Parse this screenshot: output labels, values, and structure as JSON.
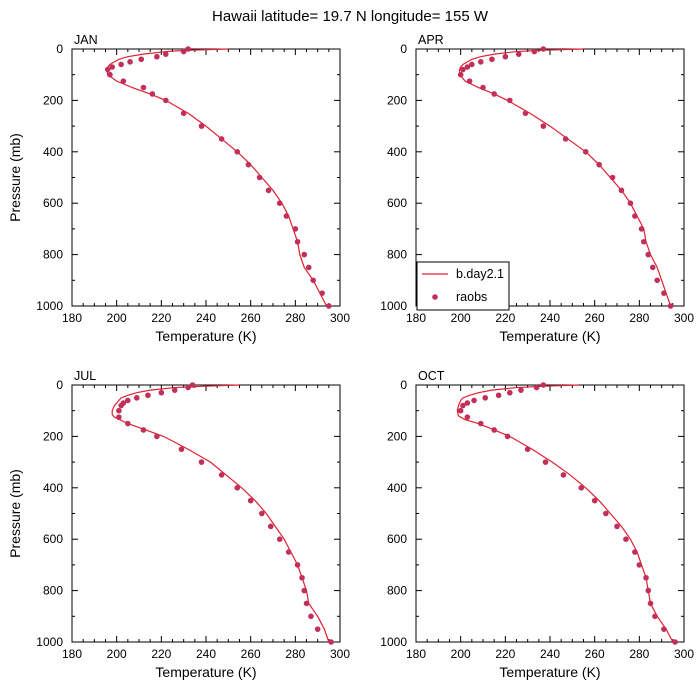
{
  "suptitle": "Hawaii  latitude= 19.7 N longitude= 155 W",
  "colors": {
    "model": "#e0202f",
    "obs": "#c0305a"
  },
  "legend": {
    "model_label": "b.day2.1",
    "obs_label": "raobs",
    "placement": "in APR panel, lower-left"
  },
  "chart_data": [
    {
      "type": "line",
      "label": "JAN",
      "xlabel": "Temperature (K)",
      "ylabel": "Pressure (mb)",
      "xlim": [
        180,
        300
      ],
      "ylim": [
        1000,
        0
      ],
      "xticks": [
        180,
        200,
        220,
        240,
        260,
        280,
        300
      ],
      "yticks": [
        0,
        200,
        400,
        600,
        800,
        1000
      ],
      "series": [
        {
          "name": "b.day2.1",
          "kind": "line",
          "points": [
            [
              250,
              0
            ],
            [
              232,
              5
            ],
            [
              222,
              10
            ],
            [
              212,
              20
            ],
            [
              205,
              30
            ],
            [
              201,
              40
            ],
            [
              199,
              50
            ],
            [
              197,
              60
            ],
            [
              196,
              70
            ],
            [
              195.5,
              80
            ],
            [
              196,
              100
            ],
            [
              200,
              125
            ],
            [
              207,
              150
            ],
            [
              215,
              175
            ],
            [
              222,
              200
            ],
            [
              232,
              250
            ],
            [
              240,
              300
            ],
            [
              247,
              350
            ],
            [
              254,
              400
            ],
            [
              260,
              450
            ],
            [
              265,
              500
            ],
            [
              270,
              550
            ],
            [
              274,
              600
            ],
            [
              277,
              650
            ],
            [
              279,
              700
            ],
            [
              281,
              750
            ],
            [
              282,
              800
            ],
            [
              284,
              850
            ],
            [
              288,
              900
            ],
            [
              291,
              950
            ],
            [
              294,
              1000
            ]
          ]
        },
        {
          "name": "raobs",
          "kind": "scatter",
          "points": [
            [
              232,
              0
            ],
            [
              230,
              10
            ],
            [
              222,
              20
            ],
            [
              218,
              30
            ],
            [
              211,
              40
            ],
            [
              206,
              50
            ],
            [
              202,
              60
            ],
            [
              198,
              70
            ],
            [
              196,
              80
            ],
            [
              197,
              100
            ],
            [
              203,
              125
            ],
            [
              212,
              150
            ],
            [
              216,
              175
            ],
            [
              222,
              200
            ],
            [
              230,
              250
            ],
            [
              238,
              300
            ],
            [
              247,
              350
            ],
            [
              254,
              400
            ],
            [
              259,
              450
            ],
            [
              264,
              500
            ],
            [
              268,
              550
            ],
            [
              273,
              600
            ],
            [
              276,
              650
            ],
            [
              280,
              700
            ],
            [
              281,
              750
            ],
            [
              284,
              800
            ],
            [
              286,
              850
            ],
            [
              288,
              900
            ],
            [
              292,
              950
            ],
            [
              295,
              1000
            ]
          ]
        }
      ]
    },
    {
      "type": "line",
      "label": "APR",
      "xlabel": "Temperature (K)",
      "ylabel": "",
      "xlim": [
        180,
        300
      ],
      "ylim": [
        1000,
        0
      ],
      "xticks": [
        180,
        200,
        220,
        240,
        260,
        280,
        300
      ],
      "yticks": [
        0,
        200,
        400,
        600,
        800,
        1000
      ],
      "series": [
        {
          "name": "b.day2.1",
          "kind": "line",
          "points": [
            [
              255,
              0
            ],
            [
              236,
              5
            ],
            [
              225,
              10
            ],
            [
              215,
              20
            ],
            [
              209,
              30
            ],
            [
              205,
              40
            ],
            [
              203,
              50
            ],
            [
              201,
              60
            ],
            [
              200,
              70
            ],
            [
              199.5,
              80
            ],
            [
              199.5,
              100
            ],
            [
              202,
              125
            ],
            [
              208,
              150
            ],
            [
              215,
              175
            ],
            [
              221,
              200
            ],
            [
              231,
              250
            ],
            [
              240,
              300
            ],
            [
              248,
              350
            ],
            [
              256,
              400
            ],
            [
              262,
              450
            ],
            [
              267,
              500
            ],
            [
              272,
              550
            ],
            [
              276,
              600
            ],
            [
              279,
              650
            ],
            [
              282,
              700
            ],
            [
              283,
              750
            ],
            [
              285,
              800
            ],
            [
              288,
              850
            ],
            [
              290,
              900
            ],
            [
              292,
              950
            ],
            [
              294,
              1000
            ]
          ]
        },
        {
          "name": "raobs",
          "kind": "scatter",
          "points": [
            [
              237,
              0
            ],
            [
              233,
              10
            ],
            [
              226,
              20
            ],
            [
              220,
              30
            ],
            [
              214,
              40
            ],
            [
              209,
              50
            ],
            [
              205,
              60
            ],
            [
              203,
              70
            ],
            [
              201,
              80
            ],
            [
              200,
              100
            ],
            [
              204,
              125
            ],
            [
              210,
              150
            ],
            [
              215,
              175
            ],
            [
              222,
              200
            ],
            [
              229,
              250
            ],
            [
              237,
              300
            ],
            [
              247,
              350
            ],
            [
              256,
              400
            ],
            [
              262,
              450
            ],
            [
              268,
              500
            ],
            [
              272,
              550
            ],
            [
              276,
              600
            ],
            [
              278,
              650
            ],
            [
              281,
              700
            ],
            [
              282,
              750
            ],
            [
              284,
              800
            ],
            [
              286,
              850
            ],
            [
              288,
              900
            ],
            [
              291,
              950
            ],
            [
              294,
              1000
            ]
          ]
        }
      ]
    },
    {
      "type": "line",
      "label": "JUL",
      "xlabel": "Temperature (K)",
      "ylabel": "Pressure (mb)",
      "xlim": [
        180,
        300
      ],
      "ylim": [
        1000,
        0
      ],
      "xticks": [
        180,
        200,
        220,
        240,
        260,
        280,
        300
      ],
      "yticks": [
        0,
        200,
        400,
        600,
        800,
        1000
      ],
      "series": [
        {
          "name": "b.day2.1",
          "kind": "line",
          "points": [
            [
              255,
              0
            ],
            [
              238,
              5
            ],
            [
              226,
              10
            ],
            [
              215,
              20
            ],
            [
              209,
              30
            ],
            [
              205,
              40
            ],
            [
              202,
              50
            ],
            [
              200,
              70
            ],
            [
              199,
              80
            ],
            [
              198,
              100
            ],
            [
              198,
              115
            ],
            [
              199,
              125
            ],
            [
              205,
              150
            ],
            [
              213,
              175
            ],
            [
              221,
              200
            ],
            [
              232,
              250
            ],
            [
              242,
              300
            ],
            [
              249,
              350
            ],
            [
              256,
              400
            ],
            [
              262,
              450
            ],
            [
              267,
              500
            ],
            [
              271,
              550
            ],
            [
              275,
              600
            ],
            [
              278,
              650
            ],
            [
              281,
              700
            ],
            [
              283,
              750
            ],
            [
              285,
              800
            ],
            [
              286,
              850
            ],
            [
              290,
              900
            ],
            [
              293,
              950
            ],
            [
              295,
              1000
            ]
          ]
        },
        {
          "name": "raobs",
          "kind": "scatter",
          "points": [
            [
              234,
              0
            ],
            [
              232,
              10
            ],
            [
              226,
              20
            ],
            [
              220,
              30
            ],
            [
              214,
              40
            ],
            [
              209,
              50
            ],
            [
              205,
              60
            ],
            [
              203,
              70
            ],
            [
              202,
              80
            ],
            [
              201,
              100
            ],
            [
              201,
              125
            ],
            [
              205,
              150
            ],
            [
              212,
              175
            ],
            [
              218,
              200
            ],
            [
              229,
              250
            ],
            [
              238,
              300
            ],
            [
              247,
              350
            ],
            [
              254,
              400
            ],
            [
              260,
              450
            ],
            [
              265,
              500
            ],
            [
              269,
              550
            ],
            [
              273,
              600
            ],
            [
              277,
              650
            ],
            [
              281,
              700
            ],
            [
              283,
              750
            ],
            [
              284,
              800
            ],
            [
              285,
              850
            ],
            [
              287,
              900
            ],
            [
              290,
              950
            ],
            [
              296,
              1000
            ]
          ]
        }
      ]
    },
    {
      "type": "line",
      "label": "OCT",
      "xlabel": "Temperature (K)",
      "ylabel": "",
      "xlim": [
        180,
        300
      ],
      "ylim": [
        1000,
        0
      ],
      "xticks": [
        180,
        200,
        220,
        240,
        260,
        280,
        300
      ],
      "yticks": [
        0,
        200,
        400,
        600,
        800,
        1000
      ],
      "series": [
        {
          "name": "b.day2.1",
          "kind": "line",
          "points": [
            [
              253,
              0
            ],
            [
              236,
              5
            ],
            [
              225,
              10
            ],
            [
              214,
              20
            ],
            [
              208,
              30
            ],
            [
              204,
              40
            ],
            [
              201,
              50
            ],
            [
              200,
              60
            ],
            [
              199,
              80
            ],
            [
              198.5,
              100
            ],
            [
              199,
              120
            ],
            [
              202,
              135
            ],
            [
              208,
              150
            ],
            [
              215,
              175
            ],
            [
              222,
              200
            ],
            [
              232,
              250
            ],
            [
              241,
              300
            ],
            [
              249,
              350
            ],
            [
              256,
              400
            ],
            [
              262,
              450
            ],
            [
              267,
              500
            ],
            [
              272,
              550
            ],
            [
              276,
              600
            ],
            [
              279,
              650
            ],
            [
              281,
              700
            ],
            [
              283,
              750
            ],
            [
              284,
              800
            ],
            [
              285,
              850
            ],
            [
              288,
              900
            ],
            [
              292,
              950
            ],
            [
              295,
              1000
            ]
          ]
        },
        {
          "name": "raobs",
          "kind": "scatter",
          "points": [
            [
              237,
              0
            ],
            [
              234,
              10
            ],
            [
              227,
              20
            ],
            [
              222,
              30
            ],
            [
              217,
              40
            ],
            [
              211,
              50
            ],
            [
              206,
              60
            ],
            [
              203,
              70
            ],
            [
              201,
              80
            ],
            [
              200,
              100
            ],
            [
              203,
              125
            ],
            [
              209,
              150
            ],
            [
              215,
              175
            ],
            [
              221,
              200
            ],
            [
              230,
              250
            ],
            [
              238,
              300
            ],
            [
              246,
              350
            ],
            [
              254,
              400
            ],
            [
              260,
              450
            ],
            [
              265,
              500
            ],
            [
              270,
              550
            ],
            [
              274,
              600
            ],
            [
              278,
              650
            ],
            [
              280,
              700
            ],
            [
              283,
              750
            ],
            [
              284,
              800
            ],
            [
              285,
              850
            ],
            [
              287,
              900
            ],
            [
              291,
              950
            ],
            [
              296,
              1000
            ]
          ]
        }
      ]
    }
  ]
}
